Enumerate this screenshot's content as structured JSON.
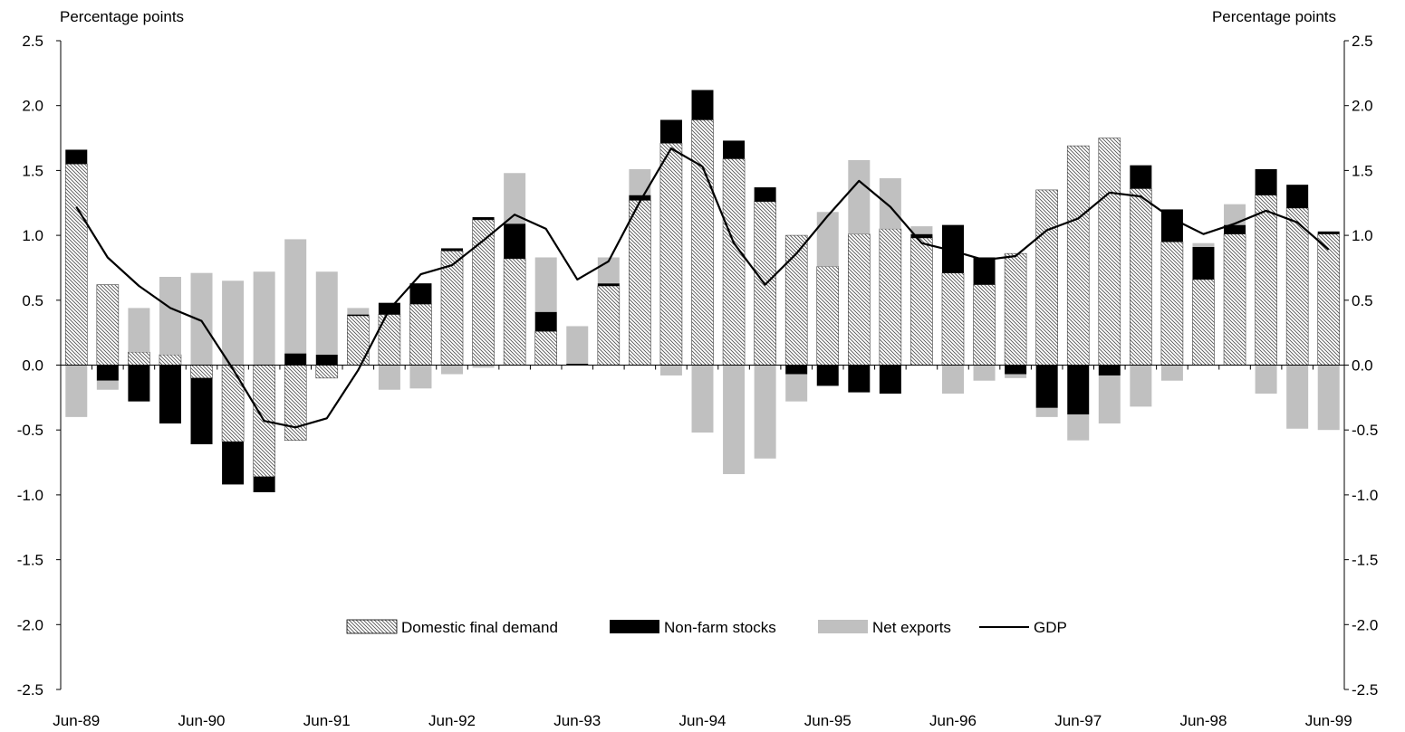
{
  "chart_data": {
    "type": "bar",
    "stacked": true,
    "ylabel_left": "Percentage points",
    "ylabel_right": "Percentage points",
    "ylim": [
      -2.5,
      2.5
    ],
    "yticks": [
      "2.5",
      "2.0",
      "1.5",
      "1.0",
      "0.5",
      "0.0",
      "-0.5",
      "-1.0",
      "-1.5",
      "-2.0",
      "-2.5"
    ],
    "ytick_values": [
      2.5,
      2.0,
      1.5,
      1.0,
      0.5,
      0.0,
      -0.5,
      -1.0,
      -1.5,
      -2.0,
      -2.5
    ],
    "xtick_labels": [
      "Jun-89",
      "Jun-90",
      "Jun-91",
      "Jun-92",
      "Jun-93",
      "Jun-94",
      "Jun-95",
      "Jun-96",
      "Jun-97",
      "Jun-98",
      "Jun-99"
    ],
    "xtick_positions": [
      0,
      4,
      8,
      12,
      16,
      20,
      24,
      28,
      32,
      36,
      40
    ],
    "x": [
      "Jun-89",
      "Sep-89",
      "Dec-89",
      "Mar-90",
      "Jun-90",
      "Sep-90",
      "Dec-90",
      "Mar-91",
      "Jun-91",
      "Sep-91",
      "Dec-91",
      "Mar-92",
      "Jun-92",
      "Sep-92",
      "Dec-92",
      "Mar-93",
      "Jun-93",
      "Sep-93",
      "Dec-93",
      "Mar-94",
      "Jun-94",
      "Sep-94",
      "Dec-94",
      "Mar-95",
      "Jun-95",
      "Sep-95",
      "Dec-95",
      "Mar-96",
      "Jun-96",
      "Sep-96",
      "Dec-96",
      "Mar-97",
      "Jun-97",
      "Sep-97",
      "Dec-97",
      "Mar-98",
      "Jun-98",
      "Sep-98",
      "Dec-98",
      "Mar-99",
      "Jun-99"
    ],
    "series": [
      {
        "name": "Domestic final demand",
        "values": [
          1.55,
          0.62,
          0.1,
          0.08,
          -0.1,
          -0.59,
          -0.86,
          -0.58,
          -0.1,
          0.38,
          0.39,
          0.47,
          0.88,
          1.12,
          0.82,
          0.26,
          0.0,
          0.61,
          1.27,
          1.71,
          1.89,
          1.59,
          1.26,
          1.0,
          0.76,
          1.01,
          1.05,
          0.98,
          0.71,
          0.62,
          0.86,
          1.35,
          1.69,
          1.75,
          1.36,
          0.95,
          0.66,
          1.01,
          1.31,
          1.21,
          1.01
        ]
      },
      {
        "name": "Non-farm stocks",
        "values": [
          0.11,
          -0.12,
          -0.28,
          -0.45,
          -0.51,
          -0.33,
          -0.12,
          0.09,
          0.08,
          0.01,
          0.09,
          0.16,
          0.02,
          0.02,
          0.27,
          0.15,
          0.01,
          0.02,
          0.04,
          0.18,
          0.23,
          0.14,
          0.11,
          -0.07,
          -0.16,
          -0.21,
          -0.22,
          0.03,
          0.37,
          0.21,
          -0.07,
          -0.33,
          -0.38,
          -0.08,
          0.18,
          0.25,
          0.25,
          0.07,
          0.2,
          0.18,
          0.02
        ]
      },
      {
        "name": "Net exports",
        "values": [
          -0.4,
          -0.07,
          0.34,
          0.6,
          0.71,
          0.65,
          0.72,
          0.88,
          0.64,
          0.05,
          -0.19,
          -0.18,
          -0.07,
          -0.02,
          0.39,
          0.42,
          0.29,
          0.2,
          0.2,
          -0.08,
          -0.52,
          -0.84,
          -0.72,
          -0.21,
          0.42,
          0.57,
          0.39,
          0.06,
          -0.22,
          -0.12,
          -0.03,
          -0.07,
          -0.2,
          -0.37,
          -0.32,
          -0.12,
          0.03,
          0.16,
          -0.22,
          -0.49,
          -0.5
        ]
      },
      {
        "name": "GDP",
        "type": "line",
        "values": [
          1.22,
          0.83,
          0.61,
          0.44,
          0.34,
          -0.03,
          -0.43,
          -0.48,
          -0.41,
          -0.04,
          0.43,
          0.7,
          0.77,
          0.96,
          1.16,
          1.05,
          0.66,
          0.8,
          1.26,
          1.67,
          1.53,
          0.94,
          0.62,
          0.86,
          1.15,
          1.42,
          1.22,
          0.94,
          0.88,
          0.81,
          0.84,
          1.04,
          1.13,
          1.33,
          1.3,
          1.13,
          1.01,
          1.09,
          1.19,
          1.1,
          0.89
        ]
      }
    ],
    "legend_position": "bottom-center",
    "colors": {
      "Domestic final demand": "#cfcfcf",
      "Non-farm stocks": "#000000",
      "Net exports": "#c0c0c0",
      "GDP": "#000000"
    },
    "grid": false
  }
}
